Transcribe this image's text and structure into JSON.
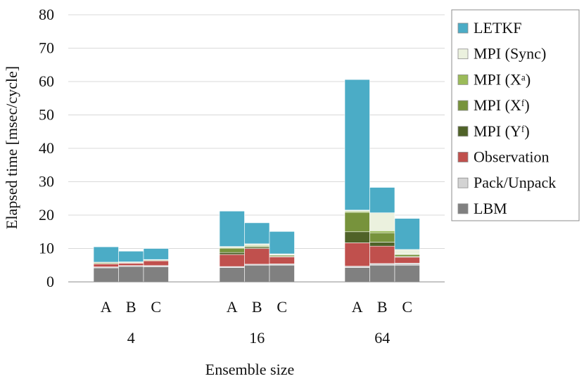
{
  "chart_data": {
    "type": "bar",
    "stacked": true,
    "title": "",
    "xlabel": "Ensemble size",
    "ylabel": "Elapsed time [msec/cycle]",
    "ylim": [
      0,
      80
    ],
    "yticks": [
      0,
      10,
      20,
      30,
      40,
      50,
      60,
      70,
      80
    ],
    "groups": [
      "4",
      "16",
      "64"
    ],
    "categories": [
      "A",
      "B",
      "C"
    ],
    "legend_position": "right",
    "series": [
      {
        "name": "LBM",
        "color": "#808080",
        "values": [
          [
            4.2,
            4.6,
            4.5
          ],
          [
            4.3,
            5.0,
            5.0
          ],
          [
            4.3,
            5.0,
            5.0
          ]
        ]
      },
      {
        "name": "Pack/Unpack",
        "color": "#d3d3d3",
        "values": [
          [
            0.3,
            0.3,
            0.4
          ],
          [
            0.3,
            0.3,
            0.4
          ],
          [
            0.4,
            0.5,
            0.6
          ]
        ]
      },
      {
        "name": "Observation",
        "color": "#c0504d",
        "values": [
          [
            0.9,
            0.7,
            1.4
          ],
          [
            3.6,
            4.7,
            2.1
          ],
          [
            7.0,
            5.2,
            1.8
          ]
        ]
      },
      {
        "name": "MPI (Yᶠ)",
        "color": "#4f6228",
        "values": [
          [
            0.1,
            0.1,
            0.1
          ],
          [
            0.6,
            0.4,
            0.1
          ],
          [
            3.3,
            1.2,
            0.2
          ]
        ]
      },
      {
        "name": "MPI (Xᶠ)",
        "color": "#77933c",
        "values": [
          [
            0.3,
            0.2,
            0.2
          ],
          [
            1.3,
            0.3,
            0.4
          ],
          [
            5.8,
            2.8,
            0.6
          ]
        ]
      },
      {
        "name": "MPI (Xᵃ)",
        "color": "#9bbb59",
        "values": [
          [
            0.1,
            0.1,
            0.1
          ],
          [
            0.2,
            0.2,
            0.1
          ],
          [
            0.3,
            0.6,
            0.1
          ]
        ]
      },
      {
        "name": "MPI (Sync)",
        "color": "#ebf1de",
        "values": [
          [
            0.0,
            0.0,
            0.0
          ],
          [
            0.3,
            0.5,
            0.3
          ],
          [
            0.4,
            5.4,
            1.4
          ]
        ]
      },
      {
        "name": "LETKF",
        "color": "#4bacc6",
        "values": [
          [
            4.6,
            3.2,
            3.3
          ],
          [
            10.6,
            6.3,
            6.7
          ],
          [
            39.1,
            7.6,
            9.3
          ]
        ]
      }
    ]
  }
}
